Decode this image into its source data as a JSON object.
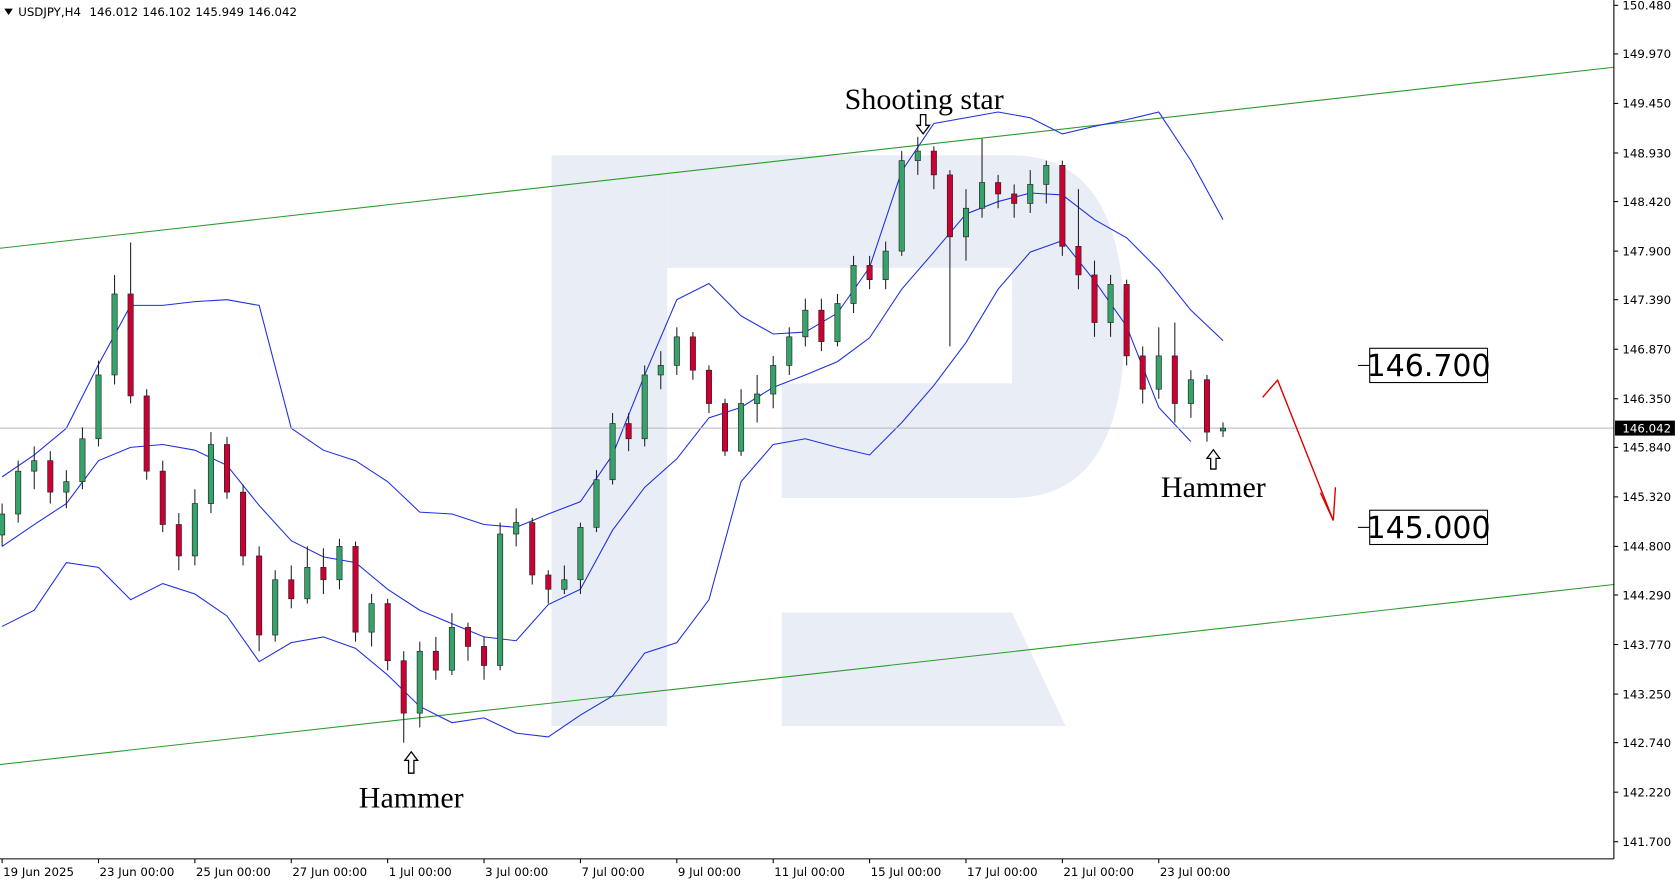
{
  "chart_data": {
    "type": "candlestick",
    "title": "USDJPY,H4",
    "up_color": "#36a36b",
    "down_color": "#cc0033",
    "wick_color": "#222222",
    "open": [
      144.92,
      145.14,
      145.59,
      145.7,
      145.37,
      145.48,
      145.93,
      146.6,
      147.45,
      146.38,
      145.59,
      145.03,
      144.7,
      145.25,
      145.87,
      145.37,
      144.7,
      143.87,
      144.45,
      144.25,
      144.58,
      144.45,
      144.8,
      143.9,
      144.2,
      143.6,
      143.05,
      143.7,
      143.5,
      143.95,
      143.75,
      143.55,
      144.93,
      145.05,
      144.5,
      144.35,
      144.45,
      145.0,
      145.5,
      146.09,
      145.93,
      146.6,
      146.7,
      147.0,
      146.65,
      146.3,
      145.8,
      146.3,
      146.4,
      146.7,
      147.0,
      147.28,
      146.95,
      147.35,
      147.75,
      147.6,
      147.9,
      148.85,
      148.95,
      148.7,
      148.05,
      148.35,
      148.62,
      148.5,
      148.4,
      148.6,
      148.8,
      147.95,
      147.65,
      147.15,
      147.55,
      146.8,
      146.45,
      146.8,
      146.3,
      146.55,
      146.012
    ],
    "high": [
      145.25,
      145.7,
      145.85,
      145.8,
      145.6,
      146.05,
      146.75,
      147.65,
      147.99,
      146.45,
      145.7,
      145.15,
      145.4,
      146.0,
      145.95,
      145.45,
      144.8,
      144.55,
      144.6,
      144.8,
      144.78,
      144.88,
      144.85,
      144.3,
      144.25,
      143.7,
      143.8,
      143.85,
      144.1,
      144.0,
      143.85,
      145.05,
      145.2,
      145.1,
      144.55,
      144.6,
      145.05,
      145.6,
      146.2,
      146.2,
      146.7,
      146.85,
      147.1,
      147.05,
      146.7,
      146.35,
      146.45,
      146.6,
      146.8,
      147.1,
      147.4,
      147.4,
      147.45,
      147.85,
      147.85,
      148.0,
      148.95,
      149.1,
      149.0,
      148.75,
      148.55,
      149.08,
      148.7,
      148.6,
      148.75,
      148.85,
      148.85,
      148.55,
      147.8,
      147.65,
      147.6,
      146.9,
      147.1,
      147.15,
      146.65,
      146.6,
      146.102
    ],
    "low": [
      144.8,
      145.05,
      145.4,
      145.25,
      145.2,
      145.4,
      145.85,
      146.5,
      146.3,
      145.5,
      144.95,
      144.55,
      144.6,
      145.15,
      145.3,
      144.6,
      143.7,
      143.8,
      144.15,
      144.2,
      144.3,
      144.35,
      143.8,
      143.75,
      143.5,
      142.74,
      142.9,
      143.4,
      143.45,
      143.6,
      143.4,
      143.5,
      144.8,
      144.4,
      144.2,
      144.3,
      144.3,
      144.95,
      145.45,
      145.8,
      145.85,
      146.45,
      146.6,
      146.55,
      146.2,
      145.75,
      145.75,
      146.1,
      146.25,
      146.6,
      146.9,
      146.85,
      146.9,
      147.25,
      147.5,
      147.5,
      147.85,
      148.7,
      148.55,
      146.9,
      147.8,
      148.25,
      148.35,
      148.25,
      148.3,
      148.4,
      147.85,
      147.5,
      147.0,
      147.0,
      146.7,
      146.3,
      146.35,
      146.1,
      146.15,
      145.9,
      145.949
    ],
    "close": [
      145.14,
      145.59,
      145.7,
      145.37,
      145.48,
      145.93,
      146.6,
      147.45,
      146.38,
      145.59,
      145.03,
      144.7,
      145.25,
      145.87,
      145.37,
      144.7,
      143.87,
      144.45,
      144.25,
      144.58,
      144.45,
      144.8,
      143.9,
      144.2,
      143.6,
      143.05,
      143.7,
      143.5,
      143.95,
      143.75,
      143.55,
      144.93,
      145.05,
      144.5,
      144.35,
      144.45,
      145.0,
      145.5,
      146.09,
      145.93,
      146.6,
      146.7,
      147.0,
      146.65,
      146.3,
      145.8,
      146.3,
      146.4,
      146.7,
      147.0,
      147.28,
      146.95,
      147.35,
      147.75,
      147.6,
      147.9,
      148.85,
      148.95,
      148.7,
      148.05,
      148.35,
      148.62,
      148.5,
      148.4,
      148.6,
      148.8,
      147.95,
      147.65,
      147.15,
      147.55,
      146.8,
      146.45,
      146.8,
      146.3,
      146.55,
      146.0,
      146.042
    ],
    "bands": {
      "color": "#1f2fe0",
      "series": [
        {
          "x": [
            0,
            2,
            4,
            6,
            8,
            10,
            12,
            14,
            16,
            18,
            20,
            22,
            24,
            26,
            28,
            30,
            32,
            34,
            36,
            38,
            40,
            42,
            44,
            46,
            48,
            50,
            52,
            54,
            56,
            58,
            60,
            62,
            64,
            66,
            68,
            70,
            72,
            74,
            76
          ],
          "values": [
            145.53,
            145.76,
            146.04,
            146.71,
            147.33,
            147.33,
            147.37,
            147.39,
            147.33,
            146.04,
            145.81,
            145.7,
            145.48,
            145.16,
            145.14,
            145.03,
            145.0,
            145.14,
            145.27,
            145.76,
            146.6,
            147.39,
            147.56,
            147.22,
            147.03,
            147.05,
            147.25,
            147.73,
            148.74,
            149.24,
            149.3,
            149.36,
            149.3,
            149.13,
            149.21,
            149.28,
            149.36,
            148.85,
            148.23
          ]
        },
        {
          "x": [
            0,
            2,
            4,
            6,
            8,
            10,
            12,
            14,
            16,
            18,
            20,
            22,
            24,
            26,
            28,
            30,
            32,
            34,
            36,
            38,
            40,
            42,
            44,
            46,
            48,
            50,
            52,
            54,
            56,
            58,
            60,
            62,
            64,
            66,
            68,
            70,
            72,
            74,
            76
          ],
          "values": [
            144.8,
            145.03,
            145.25,
            145.7,
            145.84,
            145.87,
            145.81,
            145.65,
            145.23,
            144.86,
            144.69,
            144.63,
            144.35,
            144.13,
            143.99,
            143.85,
            143.81,
            144.19,
            144.35,
            144.97,
            145.42,
            145.72,
            146.15,
            146.26,
            146.47,
            146.6,
            146.74,
            146.99,
            147.5,
            147.89,
            148.29,
            148.42,
            148.51,
            148.49,
            148.23,
            148.04,
            147.7,
            147.28,
            146.96
          ]
        },
        {
          "x": [
            0,
            2,
            4,
            6,
            8,
            10,
            12,
            14,
            16,
            18,
            20,
            22,
            24,
            26,
            28,
            30,
            32,
            34,
            36,
            38,
            40,
            42,
            44,
            46,
            48,
            50,
            52,
            54,
            56,
            58,
            60,
            62,
            64,
            66,
            68,
            70,
            72,
            74
          ],
          "values": [
            143.96,
            144.13,
            144.63,
            144.58,
            144.24,
            144.41,
            144.3,
            144.07,
            143.59,
            143.79,
            143.85,
            143.73,
            143.45,
            143.12,
            142.95,
            143.0,
            142.84,
            142.8,
            143.03,
            143.23,
            143.68,
            143.79,
            144.24,
            145.48,
            145.87,
            145.93,
            145.84,
            145.76,
            146.1,
            146.49,
            146.94,
            147.5,
            147.89,
            148.01,
            147.59,
            147.11,
            146.26,
            145.9
          ]
        }
      ]
    },
    "channel": {
      "color": "#2e9a2e",
      "series": [
        {
          "x": [
            -0.13,
            100.33
          ],
          "values": [
            147.93,
            149.83
          ]
        },
        {
          "x": [
            -0.13,
            100.33
          ],
          "values": [
            142.51,
            144.4
          ]
        }
      ]
    },
    "current_line_color": "#b8b8b8",
    "levels": [
      {
        "value": 146.7,
        "label": "146.700"
      },
      {
        "value": 145,
        "label": "145.000"
      }
    ],
    "annotations": [
      "Shooting star",
      "Hammer",
      "Hammer"
    ],
    "xlim": [
      -0.13,
      100.33
    ],
    "xticks": [
      {
        "value": 0,
        "label": "19 Jun 2025"
      },
      {
        "value": 6,
        "label": "23 Jun 00:00"
      },
      {
        "value": 12,
        "label": "25 Jun 00:00"
      },
      {
        "value": 18,
        "label": "27 Jun 00:00"
      },
      {
        "value": 24,
        "label": "1 Jul 00:00"
      },
      {
        "value": 30,
        "label": "3 Jul 00:00"
      },
      {
        "value": 36,
        "label": "7 Jul 00:00"
      },
      {
        "value": 42,
        "label": "9 Jul 00:00"
      },
      {
        "value": 48,
        "label": "11 Jul 00:00"
      },
      {
        "value": 54,
        "label": "15 Jul 00:00"
      },
      {
        "value": 60,
        "label": "17 Jul 00:00"
      },
      {
        "value": 66,
        "label": "21 Jul 00:00"
      },
      {
        "value": 72,
        "label": "23 Jul 00:00"
      }
    ],
    "ylim": [
      141.52,
      150.536
    ],
    "yticks": [
      {
        "value": 150.48,
        "label": "150.480"
      },
      {
        "value": 149.97,
        "label": "149.970"
      },
      {
        "value": 149.45,
        "label": "149.450"
      },
      {
        "value": 148.93,
        "label": "148.930"
      },
      {
        "value": 148.42,
        "label": "148.420"
      },
      {
        "value": 147.9,
        "label": "147.900"
      },
      {
        "value": 147.39,
        "label": "147.390"
      },
      {
        "value": 146.87,
        "label": "146.870"
      },
      {
        "value": 146.35,
        "label": "146.350"
      },
      {
        "value": 145.84,
        "label": "145.840"
      },
      {
        "value": 145.32,
        "label": "145.320"
      },
      {
        "value": 144.8,
        "label": "144.800"
      },
      {
        "value": 144.29,
        "label": "144.290"
      },
      {
        "value": 143.77,
        "label": "143.770"
      },
      {
        "value": 143.25,
        "label": "143.250"
      },
      {
        "value": 142.74,
        "label": "142.740"
      },
      {
        "value": 142.22,
        "label": "142.220"
      },
      {
        "value": 141.7,
        "label": "141.700"
      }
    ]
  }
}
